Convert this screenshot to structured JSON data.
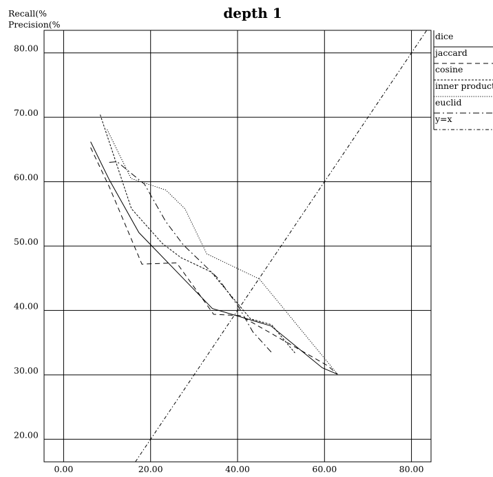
{
  "chart_data": {
    "type": "line",
    "title": "depth 1",
    "ylabel_lines": [
      "Recall(%",
      "Precision(%"
    ],
    "xlim": [
      -4.5,
      84.5
    ],
    "ylim": [
      16.5,
      83.5
    ],
    "x_ticks": [
      0,
      20,
      40,
      60,
      80
    ],
    "x_tick_labels": [
      "0.00",
      "20.00",
      "40.00",
      "60.00",
      "80.00"
    ],
    "y_ticks": [
      20,
      30,
      40,
      50,
      60,
      70,
      80
    ],
    "y_tick_labels": [
      "20.00",
      "30.00",
      "40.00",
      "50.00",
      "60.00",
      "70.00",
      "80.00"
    ],
    "grid": true,
    "legend_position": "right",
    "series": [
      {
        "name": "dice",
        "style": "solid",
        "color": "#000000",
        "points": [
          [
            6.2,
            66.2
          ],
          [
            10.5,
            60.3
          ],
          [
            17.3,
            52.1
          ],
          [
            34.2,
            40.3
          ],
          [
            47.7,
            37.6
          ],
          [
            59.5,
            31.1
          ],
          [
            63,
            30.1
          ]
        ]
      },
      {
        "name": "jaccard",
        "style": "dashed",
        "color": "#000000",
        "points": [
          [
            6.2,
            65.3
          ],
          [
            10.5,
            59.2
          ],
          [
            18,
            47.2
          ],
          [
            26,
            47.4
          ],
          [
            34.5,
            39.4
          ],
          [
            40.6,
            39.2
          ],
          [
            60.8,
            31.4
          ],
          [
            63,
            30.1
          ]
        ]
      },
      {
        "name": "cosine",
        "style": "dotted",
        "color": "#000000",
        "points": [
          [
            8.4,
            70.4
          ],
          [
            15.6,
            55.8
          ],
          [
            22.7,
            50.4
          ],
          [
            27,
            48.2
          ],
          [
            33.9,
            46
          ],
          [
            43,
            38.7
          ],
          [
            47.8,
            37.8
          ],
          [
            53.2,
            33.4
          ]
        ]
      },
      {
        "name": "inner product",
        "style": "fine-dotted",
        "color": "#000000",
        "points": [
          [
            10,
            68.1
          ],
          [
            15.5,
            60.5
          ],
          [
            23.5,
            58.7
          ],
          [
            27.9,
            55.8
          ],
          [
            32.9,
            48.8
          ],
          [
            45,
            44.9
          ],
          [
            63,
            30.1
          ]
        ]
      },
      {
        "name": "euclid",
        "style": "dash-dot-long",
        "color": "#000000",
        "points": [
          [
            10.5,
            63
          ],
          [
            12.3,
            63.1
          ],
          [
            18.6,
            59.6
          ],
          [
            23.5,
            53.8
          ],
          [
            27.5,
            50.2
          ],
          [
            35.5,
            45
          ],
          [
            40.2,
            40.6
          ],
          [
            43.5,
            36.7
          ],
          [
            47.8,
            33.5
          ]
        ]
      },
      {
        "name": "y=x",
        "style": "dash-dot",
        "color": "#000000",
        "points": [
          [
            16.5,
            16.5
          ],
          [
            83.5,
            83.5
          ]
        ]
      }
    ]
  }
}
